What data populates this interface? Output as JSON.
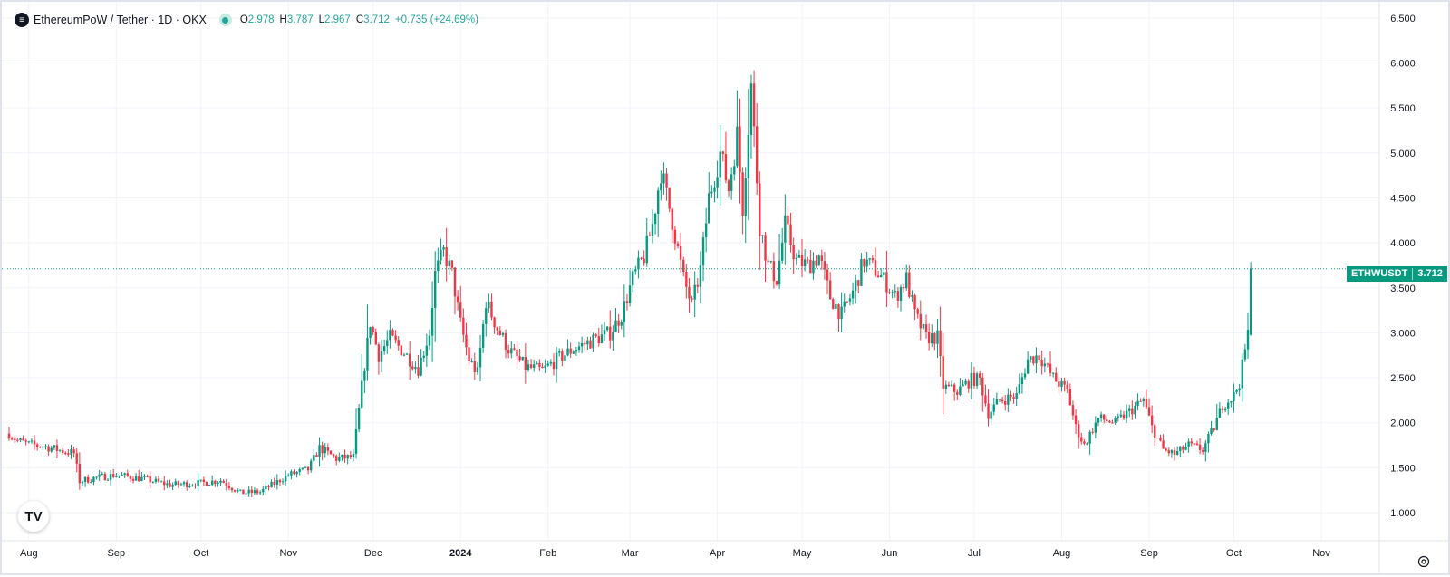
{
  "legend": {
    "symbol_icon": "ethw-coin-icon",
    "title": "EthereumPoW / Tether · 1D · OKX",
    "open_label": "O",
    "open": "2.978",
    "high_label": "H",
    "high": "3.787",
    "low_label": "L",
    "low": "2.967",
    "close_label": "C",
    "close": "3.712",
    "change": "+0.735 (+24.69%)"
  },
  "price_tag": {
    "symbol": "ETHWUSDT",
    "price": "3.712"
  },
  "logo": {
    "text": "TV",
    "icon": "tradingview-logo"
  },
  "settings_icon": "gear-icon",
  "colors": {
    "up": "#089981",
    "down": "#f23645",
    "grid": "#f0f3fa",
    "axis_text": "#131722"
  },
  "chart_data": {
    "type": "candlestick",
    "title": "EthereumPoW / Tether · 1D · OKX",
    "xlabel": "",
    "ylabel": "",
    "ylim": [
      0.8,
      6.6
    ],
    "y_ticks": [
      "1.000",
      "1.500",
      "2.000",
      "2.500",
      "3.000",
      "3.500",
      "4.000",
      "4.500",
      "5.000",
      "5.500",
      "6.000",
      "6.500"
    ],
    "x_ticks": [
      "Aug",
      "Sep",
      "Oct",
      "Nov",
      "Dec",
      "2024",
      "Feb",
      "Mar",
      "Apr",
      "May",
      "Jun",
      "Jul",
      "Aug",
      "Sep",
      "Oct",
      "Nov"
    ],
    "x_range": [
      "2023-07-25",
      "2024-11-10"
    ],
    "grid": true,
    "last_price": 3.712,
    "close_path": [
      [
        "2023-07-25",
        1.88
      ],
      [
        "2023-07-28",
        1.8
      ],
      [
        "2023-08-01",
        1.76
      ],
      [
        "2023-08-06",
        1.74
      ],
      [
        "2023-08-10",
        1.71
      ],
      [
        "2023-08-14",
        1.68
      ],
      [
        "2023-08-17",
        1.66
      ],
      [
        "2023-08-19",
        1.35
      ],
      [
        "2023-08-25",
        1.39
      ],
      [
        "2023-09-01",
        1.42
      ],
      [
        "2023-09-10",
        1.38
      ],
      [
        "2023-09-20",
        1.31
      ],
      [
        "2023-10-01",
        1.33
      ],
      [
        "2023-10-08",
        1.36
      ],
      [
        "2023-10-15",
        1.22
      ],
      [
        "2023-10-22",
        1.23
      ],
      [
        "2023-11-01",
        1.42
      ],
      [
        "2023-11-08",
        1.48
      ],
      [
        "2023-11-12",
        1.72
      ],
      [
        "2023-11-18",
        1.6
      ],
      [
        "2023-11-24",
        1.62
      ],
      [
        "2023-11-27",
        2.4
      ],
      [
        "2023-11-30",
        3.12
      ],
      [
        "2023-12-03",
        2.75
      ],
      [
        "2023-12-07",
        2.95
      ],
      [
        "2023-12-12",
        2.78
      ],
      [
        "2023-12-17",
        2.6
      ],
      [
        "2023-12-21",
        3.0
      ],
      [
        "2023-12-23",
        3.65
      ],
      [
        "2023-12-26",
        3.9
      ],
      [
        "2023-12-29",
        3.65
      ],
      [
        "2024-01-01",
        3.1
      ],
      [
        "2024-01-04",
        2.7
      ],
      [
        "2024-01-07",
        2.55
      ],
      [
        "2024-01-10",
        3.35
      ],
      [
        "2024-01-14",
        3.05
      ],
      [
        "2024-01-18",
        2.82
      ],
      [
        "2024-01-24",
        2.62
      ],
      [
        "2024-01-30",
        2.58
      ],
      [
        "2024-02-04",
        2.7
      ],
      [
        "2024-02-10",
        2.82
      ],
      [
        "2024-02-17",
        2.92
      ],
      [
        "2024-02-23",
        3.0
      ],
      [
        "2024-02-27",
        3.2
      ],
      [
        "2024-03-02",
        3.6
      ],
      [
        "2024-03-06",
        3.85
      ],
      [
        "2024-03-09",
        4.2
      ],
      [
        "2024-03-12",
        4.8
      ],
      [
        "2024-03-16",
        4.25
      ],
      [
        "2024-03-20",
        3.6
      ],
      [
        "2024-03-23",
        3.3
      ],
      [
        "2024-03-26",
        3.7
      ],
      [
        "2024-03-29",
        4.5
      ],
      [
        "2024-04-02",
        5.0
      ],
      [
        "2024-04-05",
        4.6
      ],
      [
        "2024-04-08",
        5.2
      ],
      [
        "2024-04-10",
        4.4
      ],
      [
        "2024-04-13",
        5.75
      ],
      [
        "2024-04-16",
        4.2
      ],
      [
        "2024-04-19",
        3.75
      ],
      [
        "2024-04-22",
        3.6
      ],
      [
        "2024-04-25",
        4.2
      ],
      [
        "2024-04-29",
        3.8
      ],
      [
        "2024-05-03",
        3.75
      ],
      [
        "2024-05-07",
        3.85
      ],
      [
        "2024-05-11",
        3.4
      ],
      [
        "2024-05-15",
        3.2
      ],
      [
        "2024-05-19",
        3.45
      ],
      [
        "2024-05-23",
        3.8
      ],
      [
        "2024-05-27",
        3.7
      ],
      [
        "2024-05-31",
        3.55
      ],
      [
        "2024-06-03",
        3.4
      ],
      [
        "2024-06-07",
        3.6
      ],
      [
        "2024-06-10",
        3.2
      ],
      [
        "2024-06-14",
        2.95
      ],
      [
        "2024-06-18",
        2.95
      ],
      [
        "2024-06-20",
        2.4
      ],
      [
        "2024-06-25",
        2.35
      ],
      [
        "2024-06-30",
        2.48
      ],
      [
        "2024-07-03",
        2.48
      ],
      [
        "2024-07-06",
        2.1
      ],
      [
        "2024-07-10",
        2.25
      ],
      [
        "2024-07-16",
        2.3
      ],
      [
        "2024-07-20",
        2.7
      ],
      [
        "2024-07-24",
        2.75
      ],
      [
        "2024-07-29",
        2.5
      ],
      [
        "2024-08-03",
        2.35
      ],
      [
        "2024-08-06",
        1.95
      ],
      [
        "2024-08-09",
        1.75
      ],
      [
        "2024-08-14",
        2.05
      ],
      [
        "2024-08-20",
        2.0
      ],
      [
        "2024-08-26",
        2.15
      ],
      [
        "2024-08-30",
        2.25
      ],
      [
        "2024-09-02",
        1.95
      ],
      [
        "2024-09-06",
        1.7
      ],
      [
        "2024-09-10",
        1.65
      ],
      [
        "2024-09-15",
        1.75
      ],
      [
        "2024-09-20",
        1.7
      ],
      [
        "2024-09-24",
        1.95
      ],
      [
        "2024-09-27",
        2.2
      ],
      [
        "2024-10-01",
        2.3
      ],
      [
        "2024-10-03",
        2.45
      ],
      [
        "2024-10-06",
        2.98
      ],
      [
        "2024-10-07",
        3.712
      ]
    ]
  }
}
